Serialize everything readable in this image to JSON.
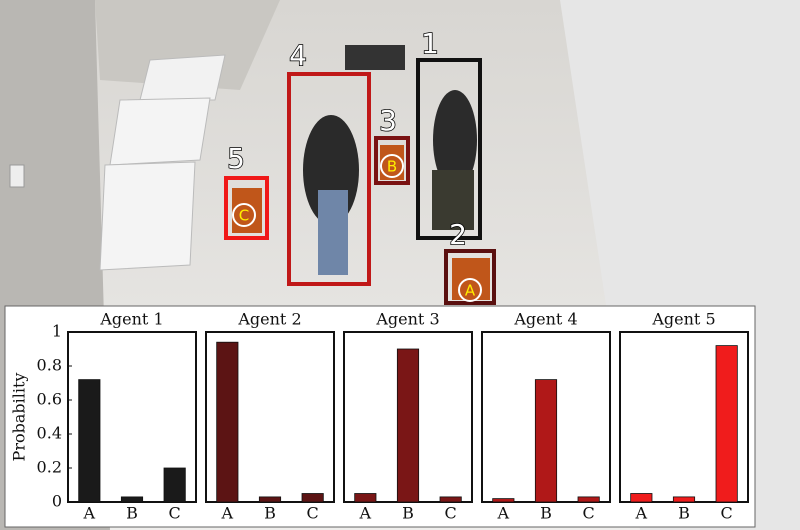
{
  "scene": {
    "boxes": [
      {
        "label": "1"
      },
      {
        "label": "2"
      },
      {
        "label": "3"
      },
      {
        "label": "4"
      },
      {
        "label": "5"
      }
    ],
    "markers": [
      {
        "label": "A"
      },
      {
        "label": "B"
      },
      {
        "label": "C"
      }
    ]
  },
  "chart_data": [
    {
      "type": "bar",
      "title": "Agent 1",
      "ylabel": "Probability",
      "categories": [
        "A",
        "B",
        "C"
      ],
      "values": [
        0.72,
        0.03,
        0.2
      ],
      "color": "#1a1a1a",
      "ylim": [
        0,
        1
      ],
      "yticks": [
        0,
        0.2,
        0.4,
        0.6,
        0.8,
        1
      ]
    },
    {
      "type": "bar",
      "title": "Agent 2",
      "categories": [
        "A",
        "B",
        "C"
      ],
      "values": [
        0.94,
        0.03,
        0.05
      ],
      "color": "#5c1414",
      "ylim": [
        0,
        1
      ]
    },
    {
      "type": "bar",
      "title": "Agent 3",
      "categories": [
        "A",
        "B",
        "C"
      ],
      "values": [
        0.05,
        0.9,
        0.03
      ],
      "color": "#7a1616",
      "ylim": [
        0,
        1
      ]
    },
    {
      "type": "bar",
      "title": "Agent 4",
      "categories": [
        "A",
        "B",
        "C"
      ],
      "values": [
        0.02,
        0.72,
        0.03
      ],
      "color": "#b01818",
      "ylim": [
        0,
        1
      ]
    },
    {
      "type": "bar",
      "title": "Agent 5",
      "categories": [
        "A",
        "B",
        "C"
      ],
      "values": [
        0.05,
        0.03,
        0.92
      ],
      "color": "#f01c1c",
      "ylim": [
        0,
        1
      ]
    }
  ]
}
